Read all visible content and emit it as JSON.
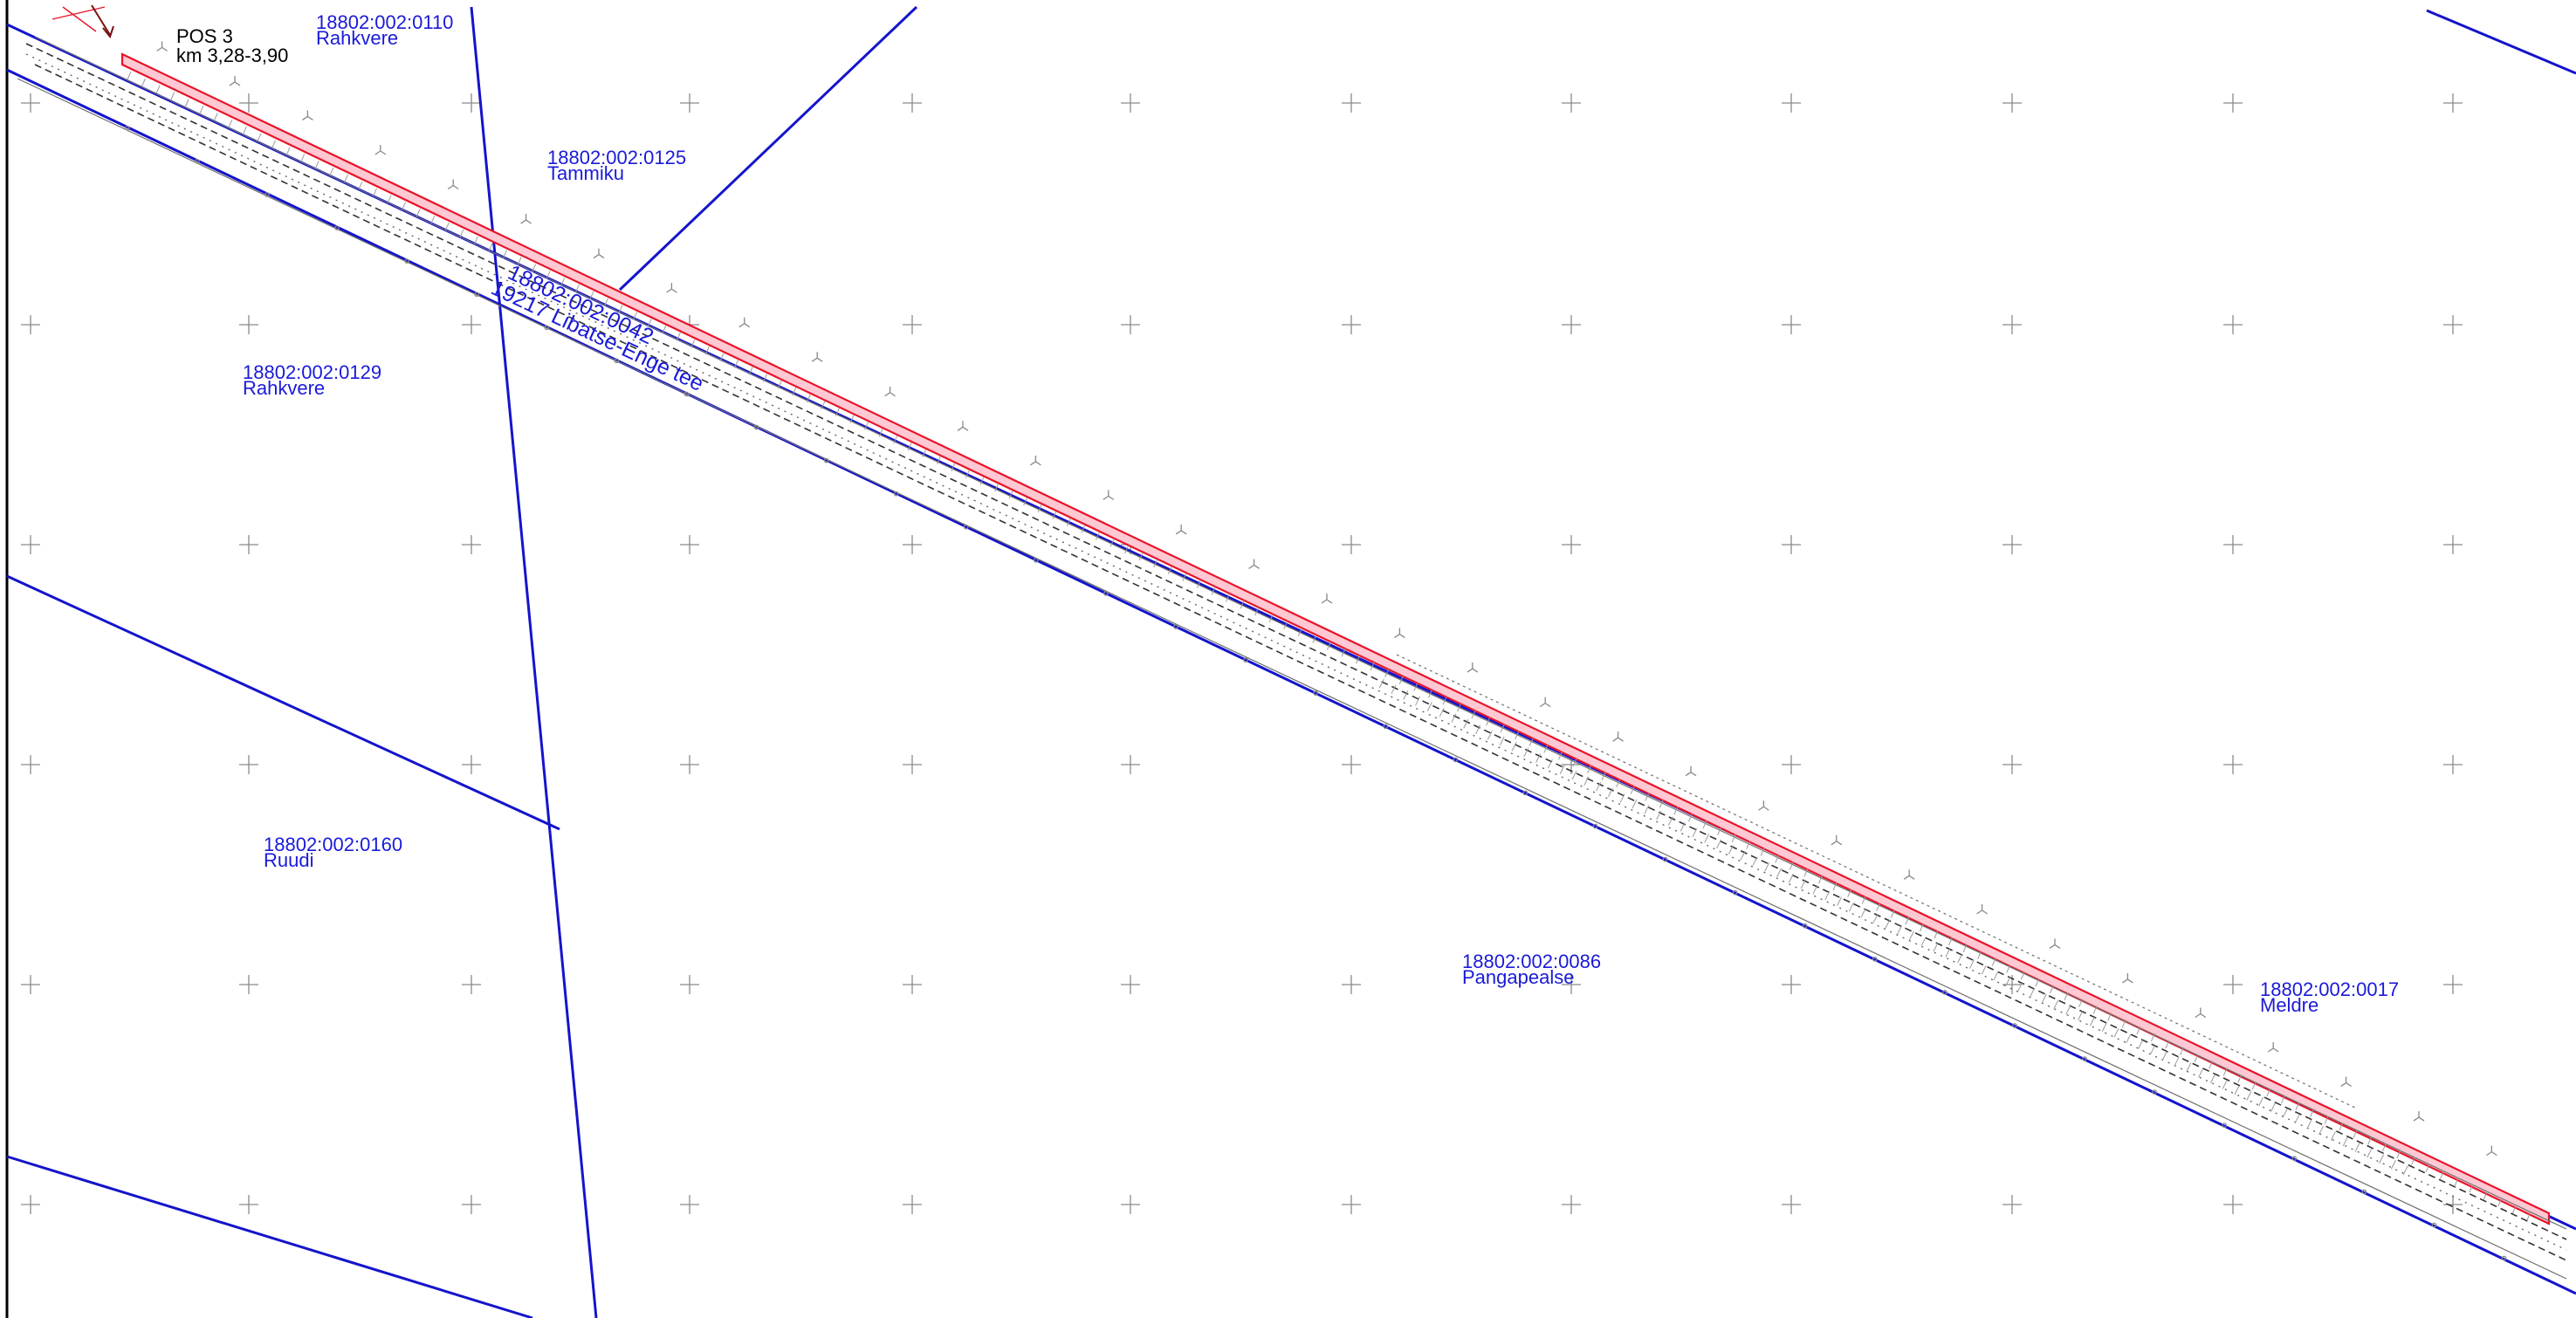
{
  "colors": {
    "boundary": "#1414cc",
    "parcel_text": "#1a1ad8",
    "road_fill": "#ffc8d2",
    "road_edge": "#e8142a",
    "grid_cross": "#8a8a8a"
  },
  "position": {
    "title": "POS 3",
    "range": "km 3,28-3,90"
  },
  "parcels": [
    {
      "id": "18802:002:0110",
      "name": "Rahkvere"
    },
    {
      "id": "18802:002:0125",
      "name": "Tammiku"
    },
    {
      "id": "18802:002:0129",
      "name": "Rahkvere"
    },
    {
      "id": "18802:002:0160",
      "name": "Ruudi"
    },
    {
      "id": "18802:002:0086",
      "name": "Pangapealse"
    },
    {
      "id": "18802:002:0017",
      "name": "Meldre"
    }
  ],
  "road": {
    "id": "18802:002:0042",
    "name": "19217 Libatse-Enge tee"
  }
}
